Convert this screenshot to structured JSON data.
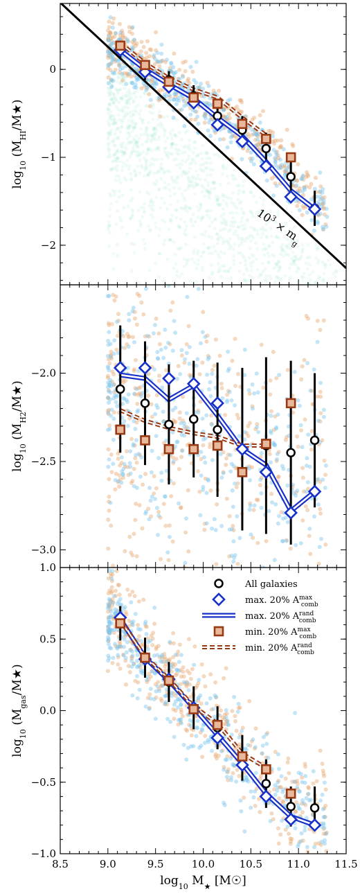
{
  "chart_data": [
    {
      "type": "scatter",
      "panel": "top",
      "ylabel": "log10 (M_HI/M★)",
      "xlim": [
        8.5,
        11.5
      ],
      "ylim": [
        -2.45,
        0.75
      ],
      "yticks": [
        0,
        -1,
        -2
      ],
      "ytick_labels": [
        "0",
        "−1",
        "−2"
      ],
      "annotation": "10^3 × m_g",
      "reference_line": {
        "x": [
          8.5,
          11.5
        ],
        "y": [
          0.76,
          -2.26
        ],
        "color": "#000000"
      },
      "series": [
        {
          "name": "All galaxies",
          "marker": "circle",
          "x": [
            9.13,
            9.39,
            9.64,
            9.9,
            10.15,
            10.41,
            10.66,
            10.92,
            11.17
          ],
          "y": [
            0.22,
            -0.02,
            -0.12,
            -0.3,
            -0.53,
            -0.69,
            -0.9,
            -1.22,
            -1.58
          ],
          "err": [
            0.1,
            0.1,
            0.1,
            0.12,
            0.14,
            0.16,
            0.18,
            0.2,
            0.2
          ]
        },
        {
          "name": "max. 20% A_comb^max",
          "marker": "diamond",
          "x": [
            9.13,
            9.39,
            9.64,
            9.9,
            10.15,
            10.41,
            10.66,
            10.92,
            11.17
          ],
          "y": [
            0.22,
            -0.03,
            -0.2,
            -0.38,
            -0.63,
            -0.82,
            -1.1,
            -1.45,
            -1.59
          ]
        },
        {
          "name": "max. 20% A_comb^rand",
          "marker": "line",
          "x": [
            9.13,
            9.39,
            9.64,
            9.9,
            10.15,
            10.41,
            10.66,
            10.92,
            11.17
          ],
          "y": [
            0.22,
            0.0,
            -0.17,
            -0.33,
            -0.55,
            -0.76,
            -1.05,
            -1.38,
            -1.59
          ]
        },
        {
          "name": "min. 20% A_comb^max",
          "marker": "square",
          "x": [
            9.13,
            9.39,
            9.64,
            9.9,
            10.15,
            10.41,
            10.66,
            10.92
          ],
          "y": [
            0.27,
            0.05,
            -0.14,
            -0.32,
            -0.39,
            -0.62,
            -0.79,
            -1.0
          ]
        },
        {
          "name": "min. 20% A_comb^rand",
          "marker": "dashed",
          "x": [
            9.13,
            9.39,
            9.64,
            9.9,
            10.15,
            10.41,
            10.66
          ],
          "y": [
            0.3,
            0.07,
            -0.1,
            -0.23,
            -0.32,
            -0.55,
            -0.75
          ]
        }
      ]
    },
    {
      "type": "scatter",
      "panel": "middle",
      "ylabel": "log10 (M_H2/M★)",
      "xlim": [
        8.5,
        11.5
      ],
      "ylim": [
        -3.1,
        -1.5
      ],
      "yticks": [
        -2.0,
        -2.5,
        -3.0
      ],
      "ytick_labels": [
        "−2.0",
        "−2.5",
        "−3.0"
      ],
      "series": [
        {
          "name": "All galaxies",
          "marker": "circle",
          "x": [
            9.13,
            9.39,
            9.64,
            9.9,
            10.15,
            10.41,
            10.66,
            10.92,
            11.17
          ],
          "y": [
            -2.09,
            -2.17,
            -2.29,
            -2.26,
            -2.32,
            -2.43,
            -2.41,
            -2.45,
            -2.38
          ],
          "err": [
            0.36,
            0.35,
            0.34,
            0.33,
            0.38,
            0.46,
            0.5,
            0.52,
            0.38
          ]
        },
        {
          "name": "max. 20% A_comb^max",
          "marker": "diamond",
          "x": [
            9.13,
            9.39,
            9.64,
            9.9,
            10.15,
            10.41,
            10.66,
            10.92,
            11.17
          ],
          "y": [
            -1.97,
            -1.97,
            -2.03,
            -2.06,
            -2.17,
            -2.43,
            -2.56,
            -2.79,
            -2.67
          ]
        },
        {
          "name": "max. 20% A_comb^rand",
          "marker": "line",
          "x": [
            9.13,
            9.39,
            9.64,
            9.9,
            10.15,
            10.41,
            10.66,
            10.92,
            11.17
          ],
          "y": [
            -2.01,
            -2.03,
            -2.15,
            -2.07,
            -2.24,
            -2.43,
            -2.52,
            -2.78,
            -2.67
          ]
        },
        {
          "name": "min. 20% A_comb^max",
          "marker": "square",
          "x": [
            9.13,
            9.39,
            9.64,
            9.9,
            10.15,
            10.41,
            10.66,
            10.92
          ],
          "y": [
            -2.32,
            -2.38,
            -2.43,
            -2.43,
            -2.41,
            -2.56,
            -2.4,
            -2.17
          ]
        },
        {
          "name": "min. 20% A_comb^rand",
          "marker": "dashed",
          "x": [
            9.13,
            9.39,
            9.64,
            9.9,
            10.15,
            10.41,
            10.66
          ],
          "y": [
            -2.21,
            -2.27,
            -2.31,
            -2.34,
            -2.36,
            -2.41,
            -2.41
          ]
        }
      ]
    },
    {
      "type": "scatter",
      "panel": "bottom",
      "xlabel": "log10 M★ [M☉]",
      "ylabel": "log10 (M_gas/M★)",
      "xlim": [
        8.5,
        11.5
      ],
      "ylim": [
        -1.0,
        1.0
      ],
      "xticks": [
        8.5,
        9.0,
        9.5,
        10.0,
        10.5,
        11.0,
        11.5
      ],
      "xtick_labels": [
        "8.5",
        "9.0",
        "9.5",
        "10.0",
        "10.5",
        "11.0",
        "11.5"
      ],
      "yticks": [
        -1.0,
        -0.5,
        0.0,
        0.5,
        1.0
      ],
      "ytick_labels": [
        "−1.0",
        "−0.5",
        "0.0",
        "0.5",
        "1.0"
      ],
      "legend": "top-right",
      "series": [
        {
          "name": "All galaxies",
          "marker": "circle",
          "x": [
            9.13,
            9.39,
            9.64,
            9.9,
            10.15,
            10.41,
            10.66,
            10.92,
            11.17
          ],
          "y": [
            0.61,
            0.37,
            0.2,
            0.02,
            -0.12,
            -0.33,
            -0.51,
            -0.67,
            -0.68
          ],
          "err": [
            0.12,
            0.14,
            0.14,
            0.15,
            0.15,
            0.16,
            0.17,
            0.14,
            0.15
          ]
        },
        {
          "name": "max. 20% A_comb^max",
          "marker": "diamond",
          "x": [
            9.13,
            9.39,
            9.64,
            9.9,
            10.15,
            10.41,
            10.66,
            10.92,
            11.17
          ],
          "y": [
            0.65,
            0.36,
            0.22,
            0.02,
            -0.19,
            -0.38,
            -0.6,
            -0.76,
            -0.8
          ]
        },
        {
          "name": "max. 20% A_comb^rand",
          "marker": "line",
          "x": [
            9.13,
            9.39,
            9.64,
            9.9,
            10.15,
            10.41,
            10.66,
            10.92,
            11.17
          ],
          "y": [
            0.64,
            0.37,
            0.21,
            0.02,
            -0.17,
            -0.37,
            -0.58,
            -0.74,
            -0.8
          ]
        },
        {
          "name": "min. 20% A_comb^max",
          "marker": "square",
          "x": [
            9.13,
            9.39,
            9.64,
            9.9,
            10.15,
            10.41,
            10.66,
            10.92
          ],
          "y": [
            0.61,
            0.37,
            0.21,
            0.01,
            -0.1,
            -0.32,
            -0.41,
            -0.58
          ]
        },
        {
          "name": "min. 20% A_comb^rand",
          "marker": "dashed",
          "x": [
            9.13,
            9.39,
            9.64,
            9.9,
            10.15,
            10.41,
            10.66
          ],
          "y": [
            0.63,
            0.38,
            0.22,
            0.03,
            -0.09,
            -0.3,
            -0.4
          ]
        }
      ]
    }
  ],
  "legend_items": [
    {
      "label": "All galaxies",
      "sub": "",
      "sup": "",
      "marker": "circle"
    },
    {
      "label": "max. 20% A",
      "sub": "comb",
      "sup": "max",
      "marker": "diamond"
    },
    {
      "label": "max. 20% A",
      "sub": "comb",
      "sup": "rand",
      "marker": "line"
    },
    {
      "label": "min. 20% A",
      "sub": "comb",
      "sup": "max",
      "marker": "square"
    },
    {
      "label": "min. 20% A",
      "sub": "comb",
      "sup": "rand",
      "marker": "dashed"
    }
  ],
  "colors": {
    "all_galaxies": "#000000",
    "max_selection": "#1630c8",
    "min_selection": "#9a3a14",
    "min_fill": "#e8b89a",
    "scatter_blue": "#7cc6ee",
    "scatter_orange": "#e6a870",
    "scatter_green": "#3fd29b"
  }
}
